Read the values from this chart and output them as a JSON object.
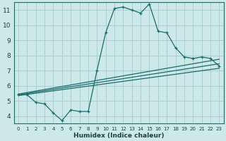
{
  "xlabel": "Humidex (Indice chaleur)",
  "bg_color": "#cce8e8",
  "grid_color": "#aacfcf",
  "line_color": "#1a6b6b",
  "xlim": [
    -0.5,
    23.5
  ],
  "ylim": [
    3.5,
    11.5
  ],
  "xticks": [
    0,
    1,
    2,
    3,
    4,
    5,
    6,
    7,
    8,
    9,
    10,
    11,
    12,
    13,
    14,
    15,
    16,
    17,
    18,
    19,
    20,
    21,
    22,
    23
  ],
  "yticks": [
    4,
    5,
    6,
    7,
    8,
    9,
    10,
    11
  ],
  "main_line_x": [
    0,
    1,
    2,
    3,
    4,
    5,
    6,
    7,
    8,
    9,
    10,
    11,
    12,
    13,
    14,
    15,
    16,
    17,
    18,
    19,
    20,
    21,
    22,
    23
  ],
  "main_line_y": [
    5.4,
    5.4,
    4.9,
    4.8,
    4.2,
    3.7,
    4.4,
    4.3,
    4.3,
    7.0,
    9.5,
    11.1,
    11.2,
    11.0,
    10.8,
    11.4,
    9.6,
    9.5,
    8.5,
    7.9,
    7.8,
    7.9,
    7.8,
    7.3
  ],
  "reg_lines": [
    {
      "x": [
        0,
        23
      ],
      "y": [
        5.35,
        7.15
      ]
    },
    {
      "x": [
        0,
        23
      ],
      "y": [
        5.4,
        7.45
      ]
    },
    {
      "x": [
        0,
        23
      ],
      "y": [
        5.45,
        7.75
      ]
    }
  ]
}
